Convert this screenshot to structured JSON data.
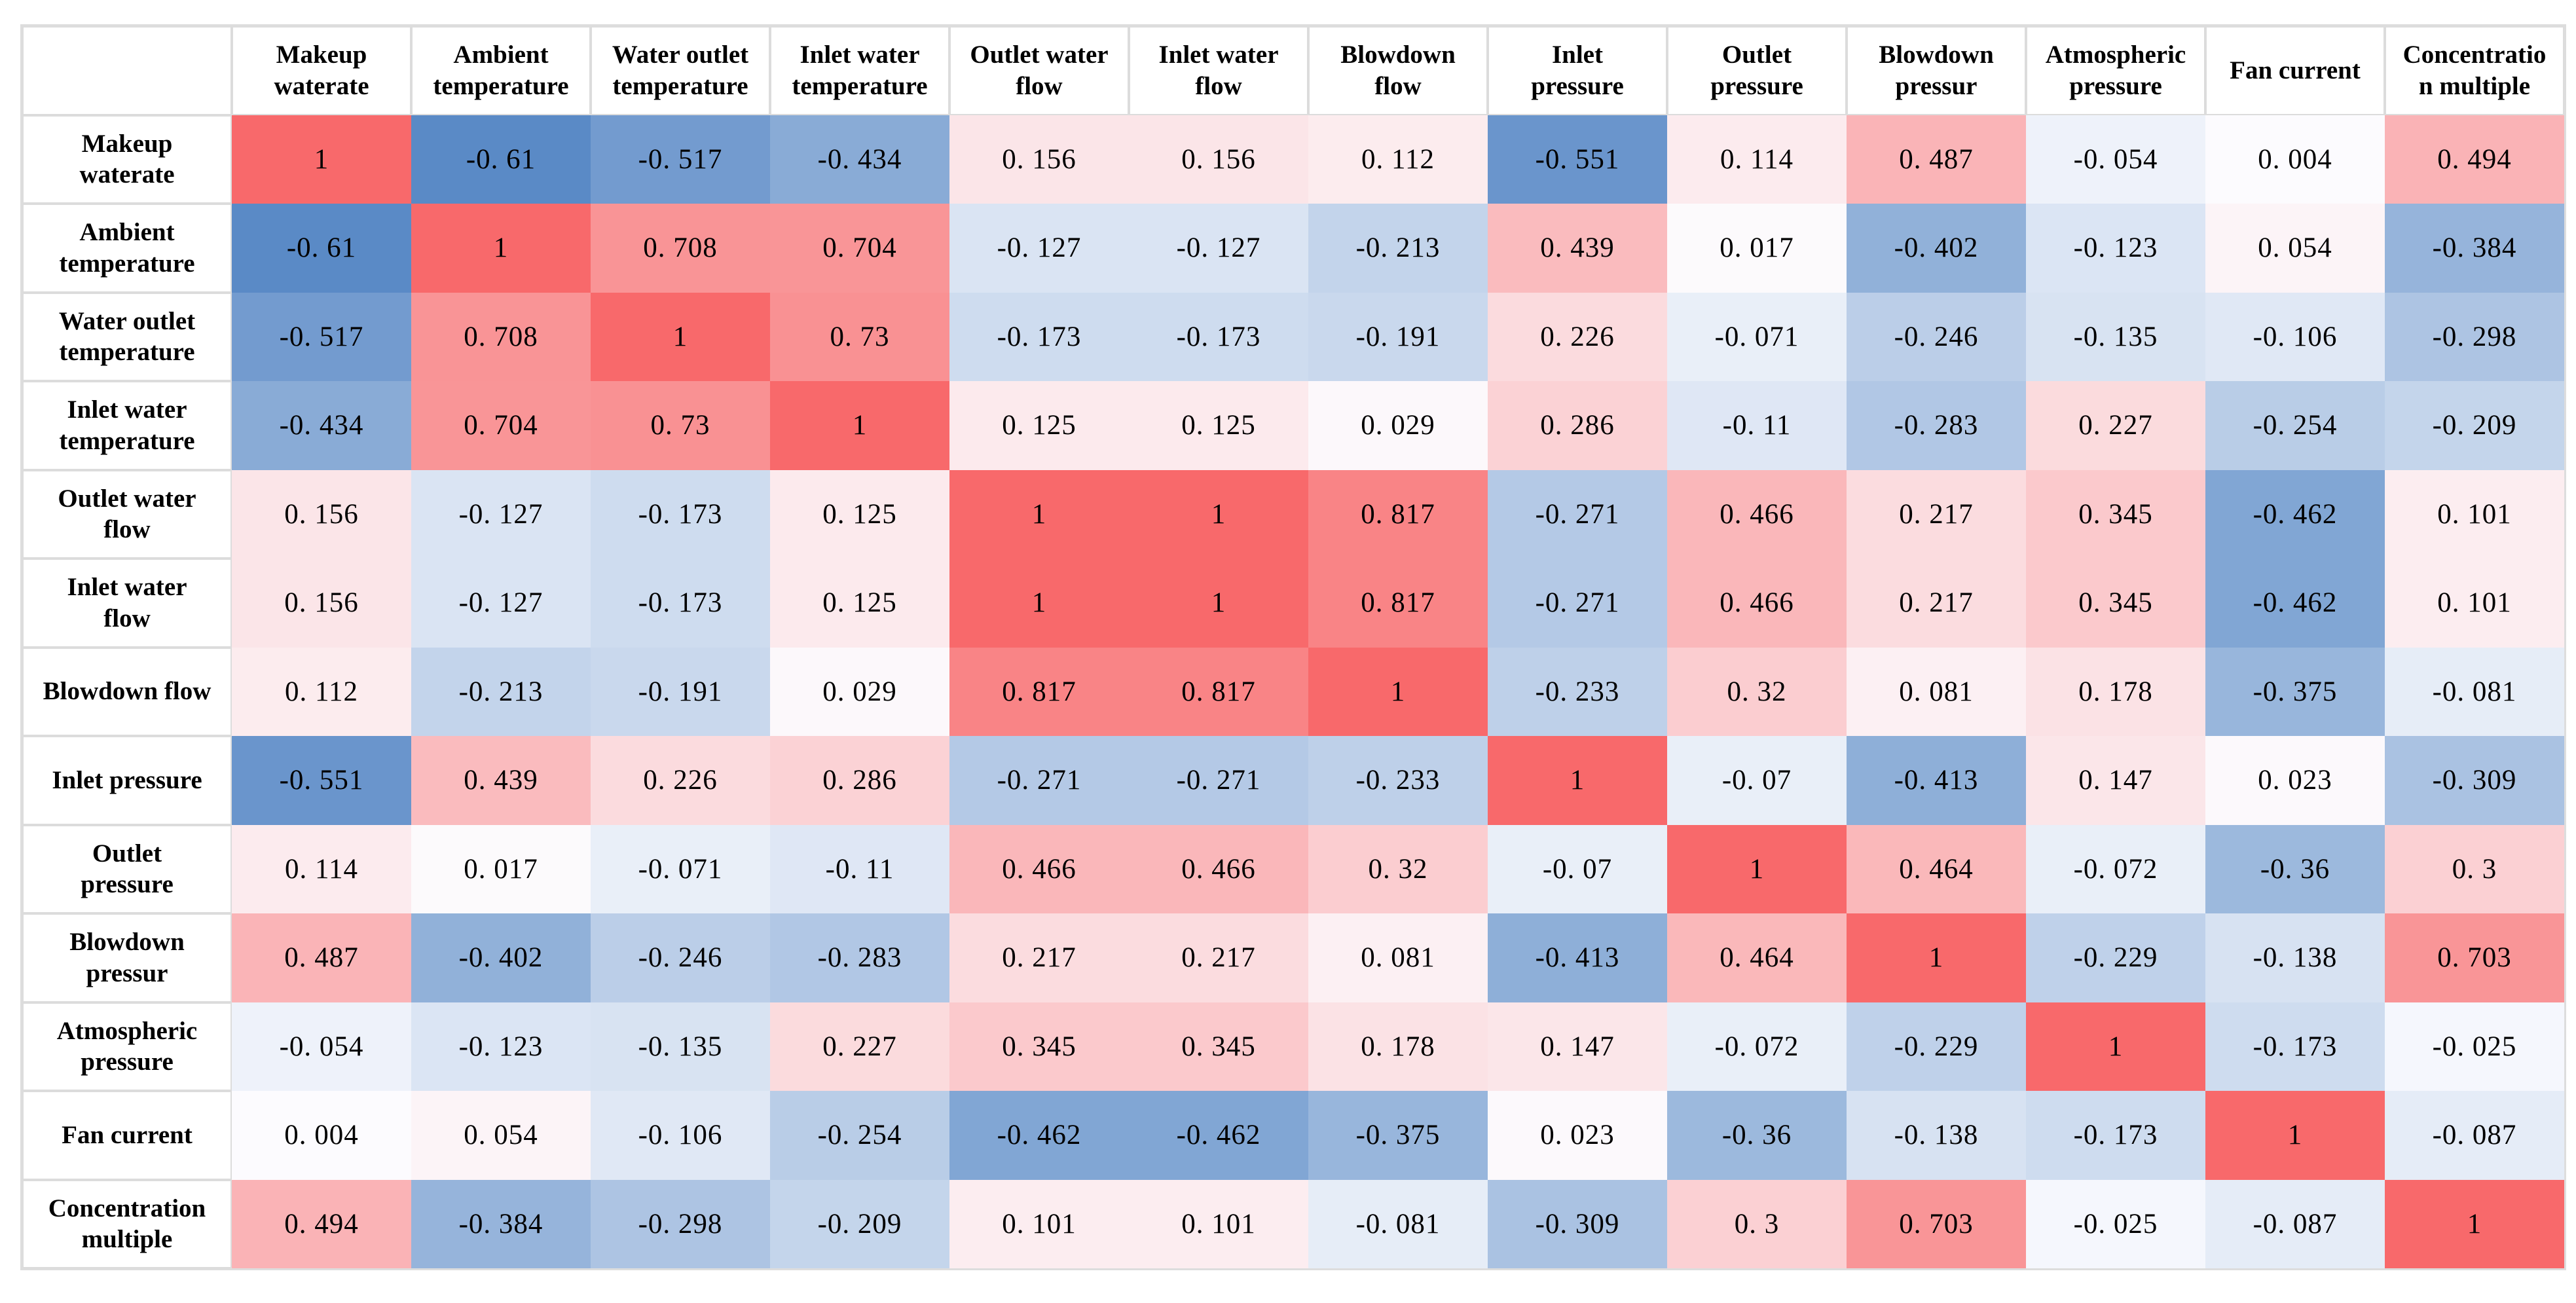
{
  "page": {
    "background_color": "#ffffff",
    "table_border_color": "#dcdcdc"
  },
  "chart_data": {
    "type": "heatmap",
    "description": "Correlation coefficient matrix heatmap, red = positive correlation, blue = negative correlation",
    "variables": [
      "Makeup waterate",
      "Ambient temperature",
      "Water outlet temperature",
      "Inlet water temperature",
      "Outlet water flow",
      "Inlet water flow",
      "Blowdown flow",
      "Inlet pressure",
      "Outlet pressure",
      "Blowdown pressur",
      "Atmospheric pressure",
      "Fan current",
      "Concentration multiple"
    ],
    "col_header_labels": [
      "Makeup\nwaterate",
      "Ambient\ntemperature",
      "Water outlet\ntemperature",
      "Inlet water\ntemperature",
      "Outlet water\nflow",
      "Inlet water\nflow",
      "Blowdown\nflow",
      "Inlet\npressure",
      "Outlet\npressure",
      "Blowdown\npressur",
      "Atmospheric\npressure",
      "Fan current",
      "Concentratio\nn multiple"
    ],
    "row_header_labels": [
      "Makeup\nwaterate",
      "Ambient\ntemperature",
      "Water outlet\ntemperature",
      "Inlet water\ntemperature",
      "Outlet water\nflow",
      "Inlet water\nflow",
      "Blowdown flow",
      "Inlet pressure",
      "Outlet\npressure",
      "Blowdown\npressur",
      "Atmospheric\npressure",
      "Fan current",
      "Concentration\nmultiple"
    ],
    "matrix": [
      [
        1,
        -0.61,
        -0.517,
        -0.434,
        0.156,
        0.156,
        0.112,
        -0.551,
        0.114,
        0.487,
        -0.054,
        0.004,
        0.494
      ],
      [
        -0.61,
        1,
        0.708,
        0.704,
        -0.127,
        -0.127,
        -0.213,
        0.439,
        0.017,
        -0.402,
        -0.123,
        0.054,
        -0.384
      ],
      [
        -0.517,
        0.708,
        1,
        0.73,
        -0.173,
        -0.173,
        -0.191,
        0.226,
        -0.071,
        -0.246,
        -0.135,
        -0.106,
        -0.298
      ],
      [
        -0.434,
        0.704,
        0.73,
        1,
        0.125,
        0.125,
        0.029,
        0.286,
        -0.11,
        -0.283,
        0.227,
        -0.254,
        -0.209
      ],
      [
        0.156,
        -0.127,
        -0.173,
        0.125,
        1,
        1,
        0.817,
        -0.271,
        0.466,
        0.217,
        0.345,
        -0.462,
        0.101
      ],
      [
        0.156,
        -0.127,
        -0.173,
        0.125,
        1,
        1,
        0.817,
        -0.271,
        0.466,
        0.217,
        0.345,
        -0.462,
        0.101
      ],
      [
        0.112,
        -0.213,
        -0.191,
        0.029,
        0.817,
        0.817,
        1,
        -0.233,
        0.32,
        0.081,
        0.178,
        -0.375,
        -0.081
      ],
      [
        -0.551,
        0.439,
        0.226,
        0.286,
        -0.271,
        -0.271,
        -0.233,
        1,
        -0.07,
        -0.413,
        0.147,
        0.023,
        -0.309
      ],
      [
        0.114,
        0.017,
        -0.071,
        -0.11,
        0.466,
        0.466,
        0.32,
        -0.07,
        1,
        0.464,
        -0.072,
        -0.36,
        0.3
      ],
      [
        0.487,
        -0.402,
        -0.246,
        -0.283,
        0.217,
        0.217,
        0.081,
        -0.413,
        0.464,
        1,
        -0.229,
        -0.138,
        0.703
      ],
      [
        -0.054,
        -0.123,
        -0.135,
        0.227,
        0.345,
        0.345,
        0.178,
        0.147,
        -0.072,
        -0.229,
        1,
        -0.173,
        -0.025
      ],
      [
        0.004,
        0.054,
        -0.106,
        -0.254,
        -0.462,
        -0.462,
        -0.375,
        0.023,
        -0.36,
        -0.138,
        -0.173,
        1,
        -0.087
      ],
      [
        0.494,
        -0.384,
        -0.298,
        -0.209,
        0.101,
        0.101,
        -0.081,
        -0.309,
        0.3,
        0.703,
        -0.025,
        -0.087,
        1
      ]
    ],
    "value_range": [
      -0.61,
      1
    ],
    "colormap": {
      "min_value": -0.61,
      "mid_value": 0,
      "max_value": 1,
      "min_color": "#5A8AC6",
      "mid_color": "#FCFCFF",
      "max_color": "#F8696B"
    },
    "layout": {
      "grid": "light gray borders on header row and label column only",
      "legend": "none",
      "number_style": "decimal point followed by thin space, e.g. 0. 156"
    }
  }
}
